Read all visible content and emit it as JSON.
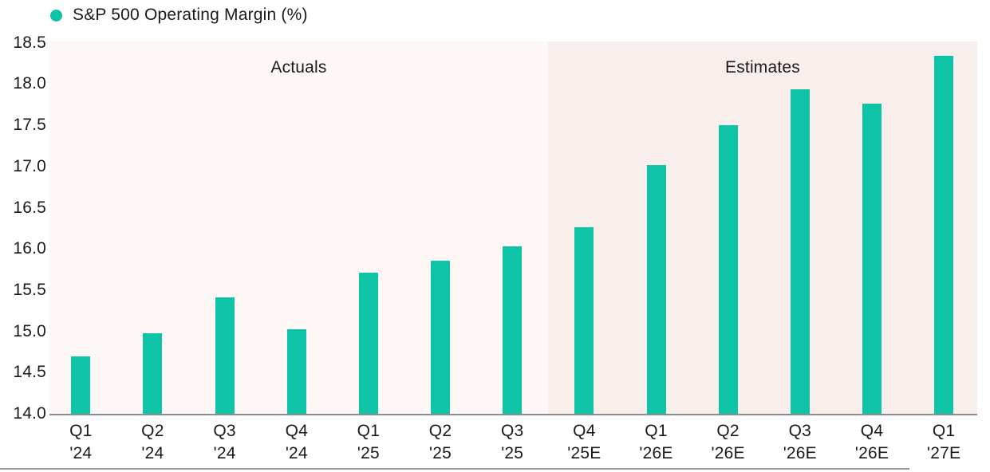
{
  "legend": {
    "label": "S&P 500 Operating Margin (%)"
  },
  "regions": {
    "actuals_label": "Actuals",
    "estimates_label": "Estimates"
  },
  "colors": {
    "bar": "#0fc3a7",
    "actuals_bg": "#fdf7f5",
    "estimates_bg": "#f8efec",
    "axis_line": "#8c8c8c",
    "text": "#1a1a1a"
  },
  "chart_data": {
    "type": "bar",
    "title": "S&P 500 Operating Margin (%)",
    "categories": [
      "Q1 '24",
      "Q2 '24",
      "Q3 '24",
      "Q4 '24",
      "Q1 '25",
      "Q2 '25",
      "Q3 '25",
      "Q4 '25E",
      "Q1 '26E",
      "Q2 '26E",
      "Q3 '26E",
      "Q4 '26E",
      "Q1 '27E"
    ],
    "x_tick_lines": [
      [
        "Q1",
        "'24"
      ],
      [
        "Q2",
        "'24"
      ],
      [
        "Q3",
        "'24"
      ],
      [
        "Q4",
        "'24"
      ],
      [
        "Q1",
        "'25"
      ],
      [
        "Q2",
        "'25"
      ],
      [
        "Q3",
        "'25"
      ],
      [
        "Q4",
        "'25E"
      ],
      [
        "Q1",
        "'26E"
      ],
      [
        "Q2",
        "'26E"
      ],
      [
        "Q3",
        "'26E"
      ],
      [
        "Q4",
        "'26E"
      ],
      [
        "Q1",
        "'27E"
      ]
    ],
    "values": [
      14.7,
      14.98,
      15.41,
      15.03,
      15.71,
      15.86,
      16.03,
      16.26,
      17.02,
      17.5,
      17.94,
      17.76,
      18.34
    ],
    "ylim": [
      14.0,
      18.5
    ],
    "ytick_labels": [
      "14.0",
      "14.5",
      "15.0",
      "15.5",
      "16.0",
      "16.5",
      "17.0",
      "17.5",
      "18.0",
      "18.5"
    ],
    "regions": [
      {
        "label": "Actuals",
        "categories": [
          "Q1 '24",
          "Q2 '24",
          "Q3 '24",
          "Q4 '24",
          "Q1 '25",
          "Q2 '25",
          "Q3 '25"
        ]
      },
      {
        "label": "Estimates",
        "categories": [
          "Q4 '25E",
          "Q1 '26E",
          "Q2 '26E",
          "Q3 '26E",
          "Q4 '26E",
          "Q1 '27E"
        ]
      }
    ],
    "grid": false,
    "legend_position": "top-left",
    "xlabel": "",
    "ylabel": ""
  }
}
